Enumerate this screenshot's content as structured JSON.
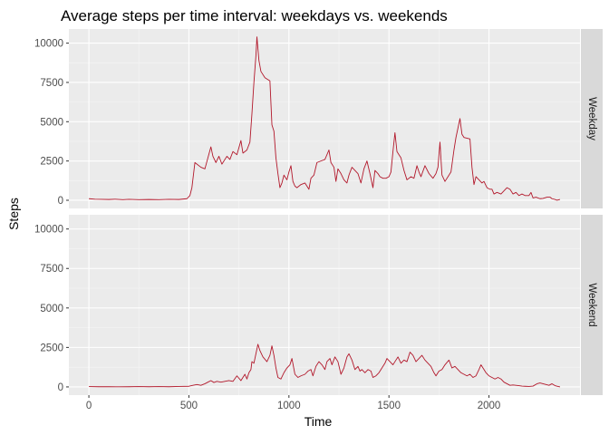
{
  "chart_data": {
    "type": "line",
    "title": "Average steps per time interval: weekdays vs. weekends",
    "xlabel": "Time",
    "ylabel": "Steps",
    "xlim": [
      -100,
      2455
    ],
    "ylim": [
      -520,
      10900
    ],
    "x_ticks": [
      0,
      500,
      1000,
      1500,
      2000
    ],
    "y_ticks": [
      0,
      2500,
      5000,
      7500,
      10000
    ],
    "x_tick_labels": [
      "0",
      "500",
      "1000",
      "1500",
      "2000"
    ],
    "y_tick_labels": [
      "0",
      "2500",
      "5000",
      "7500",
      "10000"
    ],
    "grid": true,
    "line_color": "#b2182b",
    "panel_background": "#ebebeb",
    "strip_background": "#d9d9d9",
    "facets": [
      {
        "label": "Weekday",
        "points": [
          [
            0,
            100
          ],
          [
            30,
            70
          ],
          [
            60,
            60
          ],
          [
            100,
            50
          ],
          [
            130,
            70
          ],
          [
            170,
            40
          ],
          [
            200,
            60
          ],
          [
            250,
            40
          ],
          [
            300,
            50
          ],
          [
            350,
            40
          ],
          [
            400,
            60
          ],
          [
            450,
            50
          ],
          [
            490,
            100
          ],
          [
            505,
            300
          ],
          [
            515,
            800
          ],
          [
            530,
            2400
          ],
          [
            560,
            2100
          ],
          [
            580,
            2000
          ],
          [
            595,
            2700
          ],
          [
            610,
            3400
          ],
          [
            620,
            2800
          ],
          [
            635,
            2400
          ],
          [
            650,
            2800
          ],
          [
            665,
            2300
          ],
          [
            690,
            2800
          ],
          [
            705,
            2600
          ],
          [
            720,
            3100
          ],
          [
            740,
            2900
          ],
          [
            760,
            3800
          ],
          [
            770,
            3000
          ],
          [
            790,
            3200
          ],
          [
            805,
            3700
          ],
          [
            815,
            5500
          ],
          [
            825,
            7500
          ],
          [
            835,
            9200
          ],
          [
            840,
            10400
          ],
          [
            850,
            8900
          ],
          [
            860,
            8200
          ],
          [
            880,
            7800
          ],
          [
            905,
            7600
          ],
          [
            915,
            4800
          ],
          [
            925,
            4400
          ],
          [
            935,
            2700
          ],
          [
            945,
            1700
          ],
          [
            955,
            800
          ],
          [
            965,
            1100
          ],
          [
            975,
            1600
          ],
          [
            990,
            1300
          ],
          [
            1000,
            1800
          ],
          [
            1010,
            2200
          ],
          [
            1020,
            1200
          ],
          [
            1030,
            900
          ],
          [
            1040,
            800
          ],
          [
            1060,
            1000
          ],
          [
            1080,
            1100
          ],
          [
            1100,
            700
          ],
          [
            1110,
            1400
          ],
          [
            1125,
            1600
          ],
          [
            1140,
            2400
          ],
          [
            1160,
            2500
          ],
          [
            1180,
            2600
          ],
          [
            1200,
            3200
          ],
          [
            1210,
            2400
          ],
          [
            1225,
            2100
          ],
          [
            1235,
            1200
          ],
          [
            1245,
            2000
          ],
          [
            1260,
            1700
          ],
          [
            1275,
            1300
          ],
          [
            1290,
            1100
          ],
          [
            1300,
            1600
          ],
          [
            1315,
            2100
          ],
          [
            1330,
            1900
          ],
          [
            1345,
            1700
          ],
          [
            1360,
            1100
          ],
          [
            1375,
            2000
          ],
          [
            1390,
            2500
          ],
          [
            1405,
            1700
          ],
          [
            1420,
            800
          ],
          [
            1430,
            1900
          ],
          [
            1445,
            1700
          ],
          [
            1455,
            1500
          ],
          [
            1470,
            1400
          ],
          [
            1485,
            1400
          ],
          [
            1500,
            1500
          ],
          [
            1510,
            1800
          ],
          [
            1520,
            3100
          ],
          [
            1530,
            4300
          ],
          [
            1540,
            3100
          ],
          [
            1550,
            2900
          ],
          [
            1560,
            2700
          ],
          [
            1575,
            1900
          ],
          [
            1590,
            1300
          ],
          [
            1610,
            1500
          ],
          [
            1625,
            1400
          ],
          [
            1640,
            2200
          ],
          [
            1650,
            1800
          ],
          [
            1660,
            1500
          ],
          [
            1680,
            2200
          ],
          [
            1700,
            1700
          ],
          [
            1720,
            1400
          ],
          [
            1735,
            1700
          ],
          [
            1745,
            2100
          ],
          [
            1755,
            3700
          ],
          [
            1765,
            1600
          ],
          [
            1780,
            1200
          ],
          [
            1795,
            1500
          ],
          [
            1810,
            1800
          ],
          [
            1825,
            3200
          ],
          [
            1835,
            4000
          ],
          [
            1845,
            4600
          ],
          [
            1855,
            5200
          ],
          [
            1865,
            4200
          ],
          [
            1875,
            4000
          ],
          [
            1905,
            3900
          ],
          [
            1915,
            2100
          ],
          [
            1925,
            1000
          ],
          [
            1935,
            1500
          ],
          [
            1950,
            1300
          ],
          [
            1965,
            1100
          ],
          [
            1975,
            1200
          ],
          [
            1990,
            800
          ],
          [
            2005,
            700
          ],
          [
            2015,
            700
          ],
          [
            2025,
            400
          ],
          [
            2040,
            500
          ],
          [
            2060,
            400
          ],
          [
            2075,
            600
          ],
          [
            2090,
            800
          ],
          [
            2105,
            700
          ],
          [
            2120,
            400
          ],
          [
            2135,
            500
          ],
          [
            2150,
            300
          ],
          [
            2165,
            400
          ],
          [
            2180,
            300
          ],
          [
            2200,
            300
          ],
          [
            2210,
            500
          ],
          [
            2220,
            150
          ],
          [
            2235,
            200
          ],
          [
            2255,
            100
          ],
          [
            2270,
            120
          ],
          [
            2290,
            200
          ],
          [
            2305,
            200
          ],
          [
            2315,
            100
          ],
          [
            2330,
            50
          ],
          [
            2340,
            0
          ],
          [
            2355,
            50
          ]
        ]
      },
      {
        "label": "Weekend",
        "points": [
          [
            0,
            20
          ],
          [
            50,
            10
          ],
          [
            100,
            15
          ],
          [
            150,
            5
          ],
          [
            200,
            10
          ],
          [
            250,
            20
          ],
          [
            300,
            10
          ],
          [
            350,
            20
          ],
          [
            400,
            10
          ],
          [
            450,
            30
          ],
          [
            500,
            40
          ],
          [
            520,
            100
          ],
          [
            540,
            150
          ],
          [
            560,
            100
          ],
          [
            580,
            200
          ],
          [
            595,
            300
          ],
          [
            610,
            400
          ],
          [
            625,
            280
          ],
          [
            640,
            350
          ],
          [
            660,
            300
          ],
          [
            680,
            350
          ],
          [
            700,
            400
          ],
          [
            720,
            350
          ],
          [
            740,
            700
          ],
          [
            760,
            400
          ],
          [
            780,
            800
          ],
          [
            790,
            500
          ],
          [
            800,
            900
          ],
          [
            810,
            1100
          ],
          [
            815,
            1600
          ],
          [
            825,
            1500
          ],
          [
            835,
            2100
          ],
          [
            845,
            2700
          ],
          [
            855,
            2300
          ],
          [
            870,
            1900
          ],
          [
            890,
            1600
          ],
          [
            905,
            2000
          ],
          [
            915,
            2600
          ],
          [
            925,
            2000
          ],
          [
            935,
            1200
          ],
          [
            945,
            600
          ],
          [
            960,
            500
          ],
          [
            975,
            900
          ],
          [
            990,
            1200
          ],
          [
            1005,
            1400
          ],
          [
            1015,
            1800
          ],
          [
            1030,
            800
          ],
          [
            1045,
            600
          ],
          [
            1060,
            700
          ],
          [
            1080,
            800
          ],
          [
            1095,
            1000
          ],
          [
            1110,
            1100
          ],
          [
            1120,
            700
          ],
          [
            1135,
            1300
          ],
          [
            1150,
            1600
          ],
          [
            1165,
            1400
          ],
          [
            1180,
            1100
          ],
          [
            1190,
            1600
          ],
          [
            1205,
            1800
          ],
          [
            1215,
            1400
          ],
          [
            1230,
            1900
          ],
          [
            1245,
            1600
          ],
          [
            1260,
            800
          ],
          [
            1275,
            1200
          ],
          [
            1290,
            1900
          ],
          [
            1300,
            2100
          ],
          [
            1315,
            1700
          ],
          [
            1330,
            1100
          ],
          [
            1345,
            1300
          ],
          [
            1355,
            1000
          ],
          [
            1365,
            1100
          ],
          [
            1380,
            900
          ],
          [
            1395,
            1100
          ],
          [
            1410,
            1000
          ],
          [
            1420,
            600
          ],
          [
            1435,
            700
          ],
          [
            1450,
            900
          ],
          [
            1465,
            1200
          ],
          [
            1480,
            1500
          ],
          [
            1490,
            1800
          ],
          [
            1505,
            1600
          ],
          [
            1520,
            1400
          ],
          [
            1530,
            1600
          ],
          [
            1545,
            1900
          ],
          [
            1560,
            1500
          ],
          [
            1575,
            1700
          ],
          [
            1590,
            1600
          ],
          [
            1605,
            2200
          ],
          [
            1620,
            2000
          ],
          [
            1635,
            1600
          ],
          [
            1650,
            1800
          ],
          [
            1665,
            2000
          ],
          [
            1680,
            1700
          ],
          [
            1695,
            1500
          ],
          [
            1710,
            1300
          ],
          [
            1725,
            900
          ],
          [
            1735,
            700
          ],
          [
            1750,
            1000
          ],
          [
            1765,
            1100
          ],
          [
            1780,
            1400
          ],
          [
            1800,
            1700
          ],
          [
            1815,
            1200
          ],
          [
            1830,
            1300
          ],
          [
            1845,
            1100
          ],
          [
            1860,
            900
          ],
          [
            1875,
            800
          ],
          [
            1890,
            700
          ],
          [
            1905,
            800
          ],
          [
            1920,
            600
          ],
          [
            1935,
            700
          ],
          [
            1950,
            1100
          ],
          [
            1960,
            1400
          ],
          [
            1970,
            1200
          ],
          [
            1985,
            900
          ],
          [
            2000,
            700
          ],
          [
            2015,
            600
          ],
          [
            2030,
            500
          ],
          [
            2045,
            600
          ],
          [
            2060,
            500
          ],
          [
            2075,
            300
          ],
          [
            2090,
            200
          ],
          [
            2105,
            100
          ],
          [
            2120,
            120
          ],
          [
            2135,
            100
          ],
          [
            2150,
            80
          ],
          [
            2165,
            50
          ],
          [
            2180,
            40
          ],
          [
            2200,
            30
          ],
          [
            2220,
            50
          ],
          [
            2240,
            200
          ],
          [
            2255,
            250
          ],
          [
            2270,
            200
          ],
          [
            2285,
            150
          ],
          [
            2300,
            100
          ],
          [
            2315,
            200
          ],
          [
            2330,
            80
          ],
          [
            2345,
            30
          ],
          [
            2355,
            0
          ]
        ]
      }
    ]
  }
}
